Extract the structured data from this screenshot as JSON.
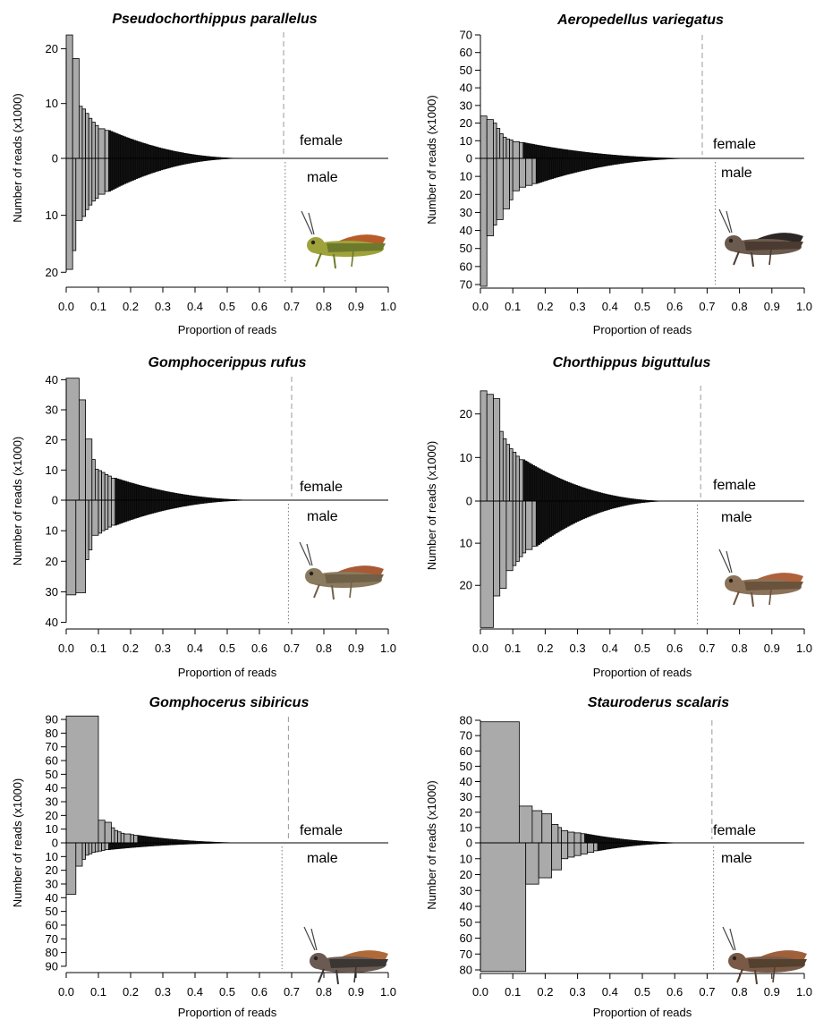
{
  "figure": {
    "xlabel": "Proportion of reads",
    "ylabel": "Number of reads (x1000)",
    "upper_label": "female",
    "lower_label": "male"
  },
  "colors": {
    "bar_fill": "#aaaaaa",
    "bar_stroke": "#000000",
    "dashed_line": "#999999",
    "dotted_line": "#777777"
  },
  "chart_data": [
    {
      "type": "bar",
      "title": "Pseudochorthippus parallelus",
      "xlabel": "Proportion of reads",
      "ylabel": "Number of reads (x1000)",
      "xlim": [
        0,
        1
      ],
      "xticks": [
        0.0,
        0.1,
        0.2,
        0.3,
        0.4,
        0.5,
        0.6,
        0.7,
        0.8,
        0.9,
        1.0
      ],
      "ylim_female": 23,
      "ylim_male": 22,
      "yticks_female": [
        0,
        10,
        20
      ],
      "yticks_male": [
        10,
        20
      ],
      "female_threshold": 0.675,
      "male_threshold": 0.68,
      "female_tail_end": 0.57,
      "male_tail_end": 0.56,
      "female_bars": [
        [
          0.0,
          22.5
        ],
        [
          0.02,
          18.2
        ],
        [
          0.04,
          9.5
        ],
        [
          0.05,
          9.0
        ],
        [
          0.06,
          8.2
        ],
        [
          0.07,
          7.3
        ],
        [
          0.08,
          6.6
        ],
        [
          0.09,
          6.0
        ],
        [
          0.1,
          5.4
        ],
        [
          0.12,
          5.1
        ]
      ],
      "male_bars": [
        [
          0.0,
          19.5
        ],
        [
          0.02,
          16.2
        ],
        [
          0.03,
          10.9
        ],
        [
          0.05,
          10.2
        ],
        [
          0.06,
          9.0
        ],
        [
          0.07,
          8.2
        ],
        [
          0.08,
          7.5
        ],
        [
          0.09,
          7.0
        ],
        [
          0.1,
          6.3
        ],
        [
          0.12,
          5.8
        ]
      ],
      "insect": "grasshopper-green",
      "annotations": [
        "female",
        "male"
      ]
    },
    {
      "type": "bar",
      "title": "Aeropedellus variegatus",
      "xlabel": "Proportion of reads",
      "ylabel": "Number of reads (x1000)",
      "xlim": [
        0,
        1
      ],
      "xticks": [
        0.0,
        0.1,
        0.2,
        0.3,
        0.4,
        0.5,
        0.6,
        0.7,
        0.8,
        0.9,
        1.0
      ],
      "ylim_female": 70,
      "ylim_male": 70,
      "yticks_female": [
        0,
        10,
        20,
        30,
        40,
        50,
        60,
        70
      ],
      "yticks_male": [
        10,
        20,
        30,
        40,
        50,
        60,
        70
      ],
      "female_threshold": 0.685,
      "male_threshold": 0.725,
      "female_tail_end": 0.68,
      "male_tail_end": 0.68,
      "female_bars": [
        [
          0.0,
          24
        ],
        [
          0.02,
          22
        ],
        [
          0.04,
          20
        ],
        [
          0.05,
          17
        ],
        [
          0.06,
          14
        ],
        [
          0.07,
          12
        ],
        [
          0.08,
          11
        ],
        [
          0.09,
          10.5
        ],
        [
          0.1,
          9.5
        ],
        [
          0.12,
          9.0
        ]
      ],
      "male_bars": [
        [
          0.0,
          71
        ],
        [
          0.02,
          43
        ],
        [
          0.04,
          37
        ],
        [
          0.05,
          34
        ],
        [
          0.07,
          28
        ],
        [
          0.09,
          23
        ],
        [
          0.1,
          18
        ],
        [
          0.12,
          16
        ],
        [
          0.14,
          15
        ],
        [
          0.16,
          14
        ]
      ],
      "insect": "grasshopper-brown",
      "annotations": [
        "female",
        "male"
      ]
    },
    {
      "type": "bar",
      "title": "Gomphocerippus rufus",
      "xlabel": "Proportion of reads",
      "ylabel": "Number of reads (x1000)",
      "xlim": [
        0,
        1
      ],
      "xticks": [
        0.0,
        0.1,
        0.2,
        0.3,
        0.4,
        0.5,
        0.6,
        0.7,
        0.8,
        0.9,
        1.0
      ],
      "ylim_female": 41,
      "ylim_male": 41,
      "yticks_female": [
        0,
        10,
        20,
        30,
        40
      ],
      "yticks_male": [
        10,
        20,
        30,
        40
      ],
      "female_threshold": 0.7,
      "male_threshold": 0.69,
      "female_tail_end": 0.61,
      "male_tail_end": 0.6,
      "female_bars": [
        [
          0.0,
          40.5
        ],
        [
          0.04,
          33.3
        ],
        [
          0.06,
          20.3
        ],
        [
          0.08,
          13.5
        ],
        [
          0.09,
          10.3
        ],
        [
          0.1,
          9.8
        ],
        [
          0.11,
          9.2
        ],
        [
          0.12,
          8.5
        ],
        [
          0.13,
          8.0
        ],
        [
          0.14,
          7.3
        ]
      ],
      "male_bars": [
        [
          0.0,
          31
        ],
        [
          0.03,
          30.3
        ],
        [
          0.06,
          19.5
        ],
        [
          0.07,
          16.3
        ],
        [
          0.08,
          11.5
        ],
        [
          0.1,
          10.8
        ],
        [
          0.11,
          10.0
        ],
        [
          0.12,
          9.5
        ],
        [
          0.13,
          8.8
        ],
        [
          0.14,
          8.2
        ]
      ],
      "insect": "grasshopper-olive",
      "annotations": [
        "female",
        "male"
      ]
    },
    {
      "type": "bar",
      "title": "Chorthippus biguttulus",
      "xlabel": "Proportion of reads",
      "ylabel": "Number of reads (x1000)",
      "xlim": [
        0,
        1
      ],
      "xticks": [
        0.0,
        0.1,
        0.2,
        0.3,
        0.4,
        0.5,
        0.6,
        0.7,
        0.8,
        0.9,
        1.0
      ],
      "ylim_female": 26.5,
      "ylim_male": 29.5,
      "yticks_female": [
        0,
        10,
        20
      ],
      "yticks_male": [
        10,
        20
      ],
      "female_threshold": 0.68,
      "male_threshold": 0.67,
      "female_tail_end": 0.59,
      "male_tail_end": 0.59,
      "female_bars": [
        [
          0.0,
          25.3
        ],
        [
          0.02,
          24.5
        ],
        [
          0.04,
          23.5
        ],
        [
          0.06,
          16.0
        ],
        [
          0.07,
          14.3
        ],
        [
          0.08,
          13.0
        ],
        [
          0.09,
          12.0
        ],
        [
          0.1,
          11.2
        ],
        [
          0.11,
          10.3
        ],
        [
          0.12,
          9.5
        ]
      ],
      "male_bars": [
        [
          0.0,
          30
        ],
        [
          0.04,
          22.5
        ],
        [
          0.06,
          20.7
        ],
        [
          0.08,
          16.5
        ],
        [
          0.1,
          15.3
        ],
        [
          0.11,
          14.3
        ],
        [
          0.12,
          13.2
        ],
        [
          0.13,
          12.3
        ],
        [
          0.14,
          11.5
        ],
        [
          0.16,
          10.7
        ]
      ],
      "insect": "grasshopper-brown-stripe",
      "annotations": [
        "female",
        "male"
      ]
    },
    {
      "type": "bar",
      "title": "Gomphocerus sibiricus",
      "xlabel": "Proportion of reads",
      "ylabel": "Number of reads (x1000)",
      "xlim": [
        0,
        1
      ],
      "xticks": [
        0.0,
        0.1,
        0.2,
        0.3,
        0.4,
        0.5,
        0.6,
        0.7,
        0.8,
        0.9,
        1.0
      ],
      "ylim_female": 92,
      "ylim_male": 92,
      "yticks_female": [
        0,
        10,
        20,
        30,
        40,
        50,
        60,
        70,
        80,
        90
      ],
      "yticks_male": [
        10,
        20,
        30,
        40,
        50,
        60,
        70,
        80,
        90
      ],
      "female_threshold": 0.69,
      "male_threshold": 0.67,
      "female_tail_end": 0.59,
      "male_tail_end": 0.59,
      "female_bars": [
        [
          0.0,
          92.5
        ],
        [
          0.1,
          16.5
        ],
        [
          0.12,
          15.0
        ],
        [
          0.14,
          11.0
        ],
        [
          0.15,
          9.0
        ],
        [
          0.16,
          8.0
        ],
        [
          0.17,
          7.0
        ],
        [
          0.18,
          6.5
        ],
        [
          0.2,
          6.0
        ],
        [
          0.21,
          5.5
        ]
      ],
      "male_bars": [
        [
          0.0,
          37.5
        ],
        [
          0.03,
          17.0
        ],
        [
          0.05,
          12.0
        ],
        [
          0.06,
          9.0
        ],
        [
          0.07,
          8.0
        ],
        [
          0.08,
          7.0
        ],
        [
          0.09,
          6.5
        ],
        [
          0.1,
          6.0
        ],
        [
          0.11,
          5.5
        ],
        [
          0.12,
          5.0
        ]
      ],
      "insect": "grasshopper-spotted",
      "annotations": [
        "female",
        "male"
      ]
    },
    {
      "type": "bar",
      "title": "Stauroderus scalaris",
      "xlabel": "Proportion of reads",
      "ylabel": "Number of reads (x1000)",
      "xlim": [
        0,
        1
      ],
      "xticks": [
        0.0,
        0.1,
        0.2,
        0.3,
        0.4,
        0.5,
        0.6,
        0.7,
        0.8,
        0.9,
        1.0
      ],
      "ylim_female": 80,
      "ylim_male": 80,
      "yticks_female": [
        0,
        10,
        20,
        30,
        40,
        50,
        60,
        70,
        80
      ],
      "yticks_male": [
        10,
        20,
        30,
        40,
        50,
        60,
        70,
        80
      ],
      "female_threshold": 0.715,
      "male_threshold": 0.72,
      "female_tail_end": 0.66,
      "male_tail_end": 0.66,
      "female_bars": [
        [
          0.0,
          79
        ],
        [
          0.12,
          24
        ],
        [
          0.16,
          21
        ],
        [
          0.19,
          19
        ],
        [
          0.22,
          12
        ],
        [
          0.24,
          10
        ],
        [
          0.25,
          8
        ],
        [
          0.27,
          7
        ],
        [
          0.29,
          6.5
        ],
        [
          0.31,
          6
        ]
      ],
      "male_bars": [
        [
          0.0,
          81
        ],
        [
          0.14,
          26
        ],
        [
          0.18,
          22
        ],
        [
          0.22,
          17
        ],
        [
          0.25,
          10
        ],
        [
          0.27,
          9
        ],
        [
          0.29,
          8
        ],
        [
          0.31,
          7
        ],
        [
          0.33,
          6
        ],
        [
          0.35,
          5
        ]
      ],
      "insect": "grasshopper-dark",
      "annotations": [
        "female",
        "male"
      ]
    }
  ]
}
